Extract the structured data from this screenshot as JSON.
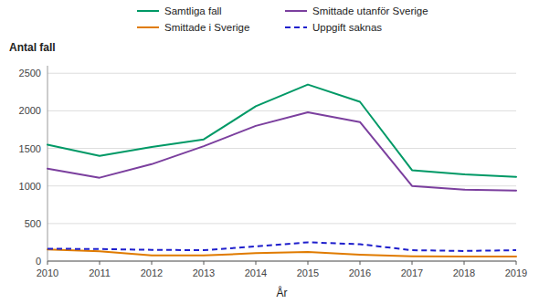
{
  "chart_data": {
    "type": "line",
    "xlabel": "År",
    "ylabel": "Antal fall",
    "x": [
      2010,
      2011,
      2012,
      2013,
      2014,
      2015,
      2016,
      2017,
      2018,
      2019
    ],
    "xlim": [
      2010,
      2019
    ],
    "xticks": [
      2010,
      2011,
      2012,
      2013,
      2014,
      2015,
      2016,
      2017,
      2018,
      2019
    ],
    "ylim": [
      0,
      2600
    ],
    "yticks": [
      0,
      500,
      1000,
      1500,
      2000,
      2500
    ],
    "grid": true,
    "legend": "top",
    "series": [
      {
        "name": "Samtliga fall",
        "color": "#009966",
        "line_style": "solid",
        "values": [
          1550,
          1400,
          1520,
          1620,
          2060,
          2350,
          2120,
          1210,
          1155,
          1120
        ]
      },
      {
        "name": "Smittade utanför Sverige",
        "color": "#7B3F9E",
        "line_style": "solid",
        "values": [
          1230,
          1110,
          1290,
          1530,
          1800,
          1980,
          1850,
          1000,
          950,
          940
        ]
      },
      {
        "name": "Smittade i Sverige",
        "color": "#E07B00",
        "line_style": "solid",
        "values": [
          155,
          130,
          75,
          75,
          105,
          120,
          85,
          65,
          60,
          60
        ]
      },
      {
        "name": "Uppgift saknas",
        "color": "#1F1FCC",
        "line_style": "dashed",
        "values": [
          165,
          160,
          150,
          145,
          195,
          250,
          225,
          145,
          135,
          145
        ]
      }
    ]
  }
}
